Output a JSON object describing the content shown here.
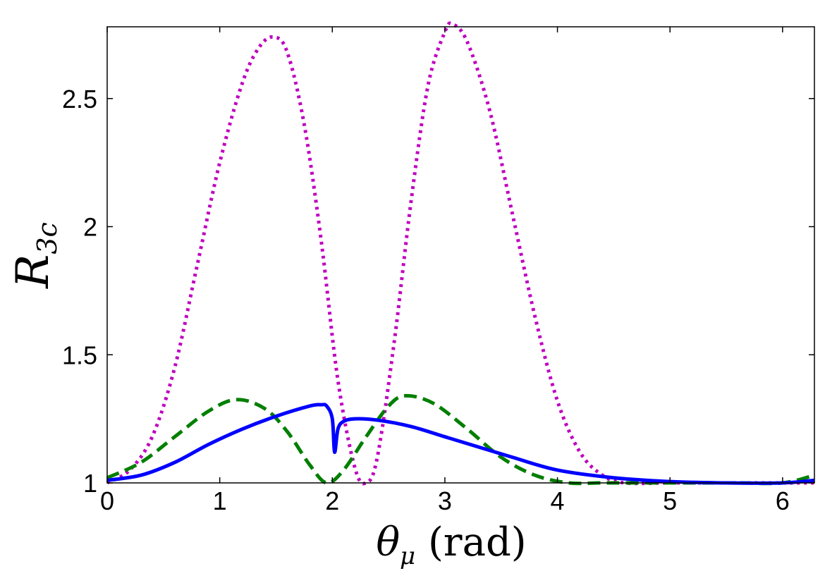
{
  "chart_data": {
    "type": "line",
    "xlabel": {
      "symbol": "θ",
      "subscript": "μ",
      "unit": " (rad)"
    },
    "ylabel": {
      "symbol": "R",
      "subscript": "3c"
    },
    "xlim": [
      0,
      6.283
    ],
    "ylim": [
      1,
      2.78
    ],
    "xticks": [
      0,
      1,
      2,
      3,
      4,
      5,
      6
    ],
    "xtick_labels": [
      "0",
      "1",
      "2",
      "3",
      "4",
      "5",
      "6"
    ],
    "yticks": [
      1,
      1.5,
      2,
      2.5
    ],
    "ytick_labels": [
      "1",
      "1.5",
      "2",
      "2.5"
    ],
    "grid": false,
    "series": [
      {
        "name": "solid",
        "color": "#0000ff",
        "style": "solid",
        "x": [
          0,
          0.3,
          0.6,
          0.9,
          1.2,
          1.5,
          1.8,
          1.9,
          1.95,
          2.0,
          2.02,
          2.05,
          2.1,
          2.2,
          2.4,
          2.7,
          3.0,
          3.3,
          3.6,
          4.0,
          4.5,
          5.0,
          5.5,
          6.0,
          6.283
        ],
        "values": [
          1.01,
          1.03,
          1.08,
          1.15,
          1.21,
          1.26,
          1.3,
          1.305,
          1.3,
          1.25,
          1.12,
          1.21,
          1.24,
          1.25,
          1.245,
          1.22,
          1.18,
          1.14,
          1.1,
          1.05,
          1.02,
          1.005,
          1.0,
          1.0,
          1.01
        ]
      },
      {
        "name": "dashed",
        "color": "#007f00",
        "style": "dashed",
        "x": [
          0,
          0.3,
          0.6,
          0.9,
          1.15,
          1.4,
          1.6,
          1.8,
          1.95,
          2.1,
          2.3,
          2.5,
          2.65,
          2.9,
          3.2,
          3.5,
          3.8,
          4.1,
          4.4,
          4.8,
          5.2,
          5.6,
          6.0,
          6.283
        ],
        "values": [
          1.02,
          1.08,
          1.18,
          1.28,
          1.325,
          1.29,
          1.2,
          1.07,
          1.0,
          1.05,
          1.18,
          1.3,
          1.34,
          1.31,
          1.21,
          1.1,
          1.03,
          1.0,
          1.0,
          1.0,
          1.0,
          1.0,
          1.0,
          1.03
        ]
      },
      {
        "name": "dotted",
        "color": "#bf00bf",
        "style": "dotted",
        "x": [
          0,
          0.2,
          0.4,
          0.6,
          0.8,
          1.0,
          1.2,
          1.35,
          1.48,
          1.6,
          1.75,
          1.9,
          2.05,
          2.2,
          2.3,
          2.4,
          2.55,
          2.7,
          2.85,
          3.0,
          3.07,
          3.2,
          3.4,
          3.6,
          3.8,
          4.0,
          4.2,
          4.4,
          4.6,
          5.0,
          5.5,
          6.0,
          6.283
        ],
        "values": [
          1.0,
          1.05,
          1.18,
          1.45,
          1.85,
          2.25,
          2.56,
          2.7,
          2.74,
          2.68,
          2.4,
          1.95,
          1.4,
          1.06,
          1.0,
          1.1,
          1.55,
          2.1,
          2.55,
          2.76,
          2.79,
          2.72,
          2.45,
          2.05,
          1.65,
          1.32,
          1.12,
          1.03,
          1.0,
          1.0,
          1.0,
          1.0,
          1.0
        ]
      }
    ]
  }
}
